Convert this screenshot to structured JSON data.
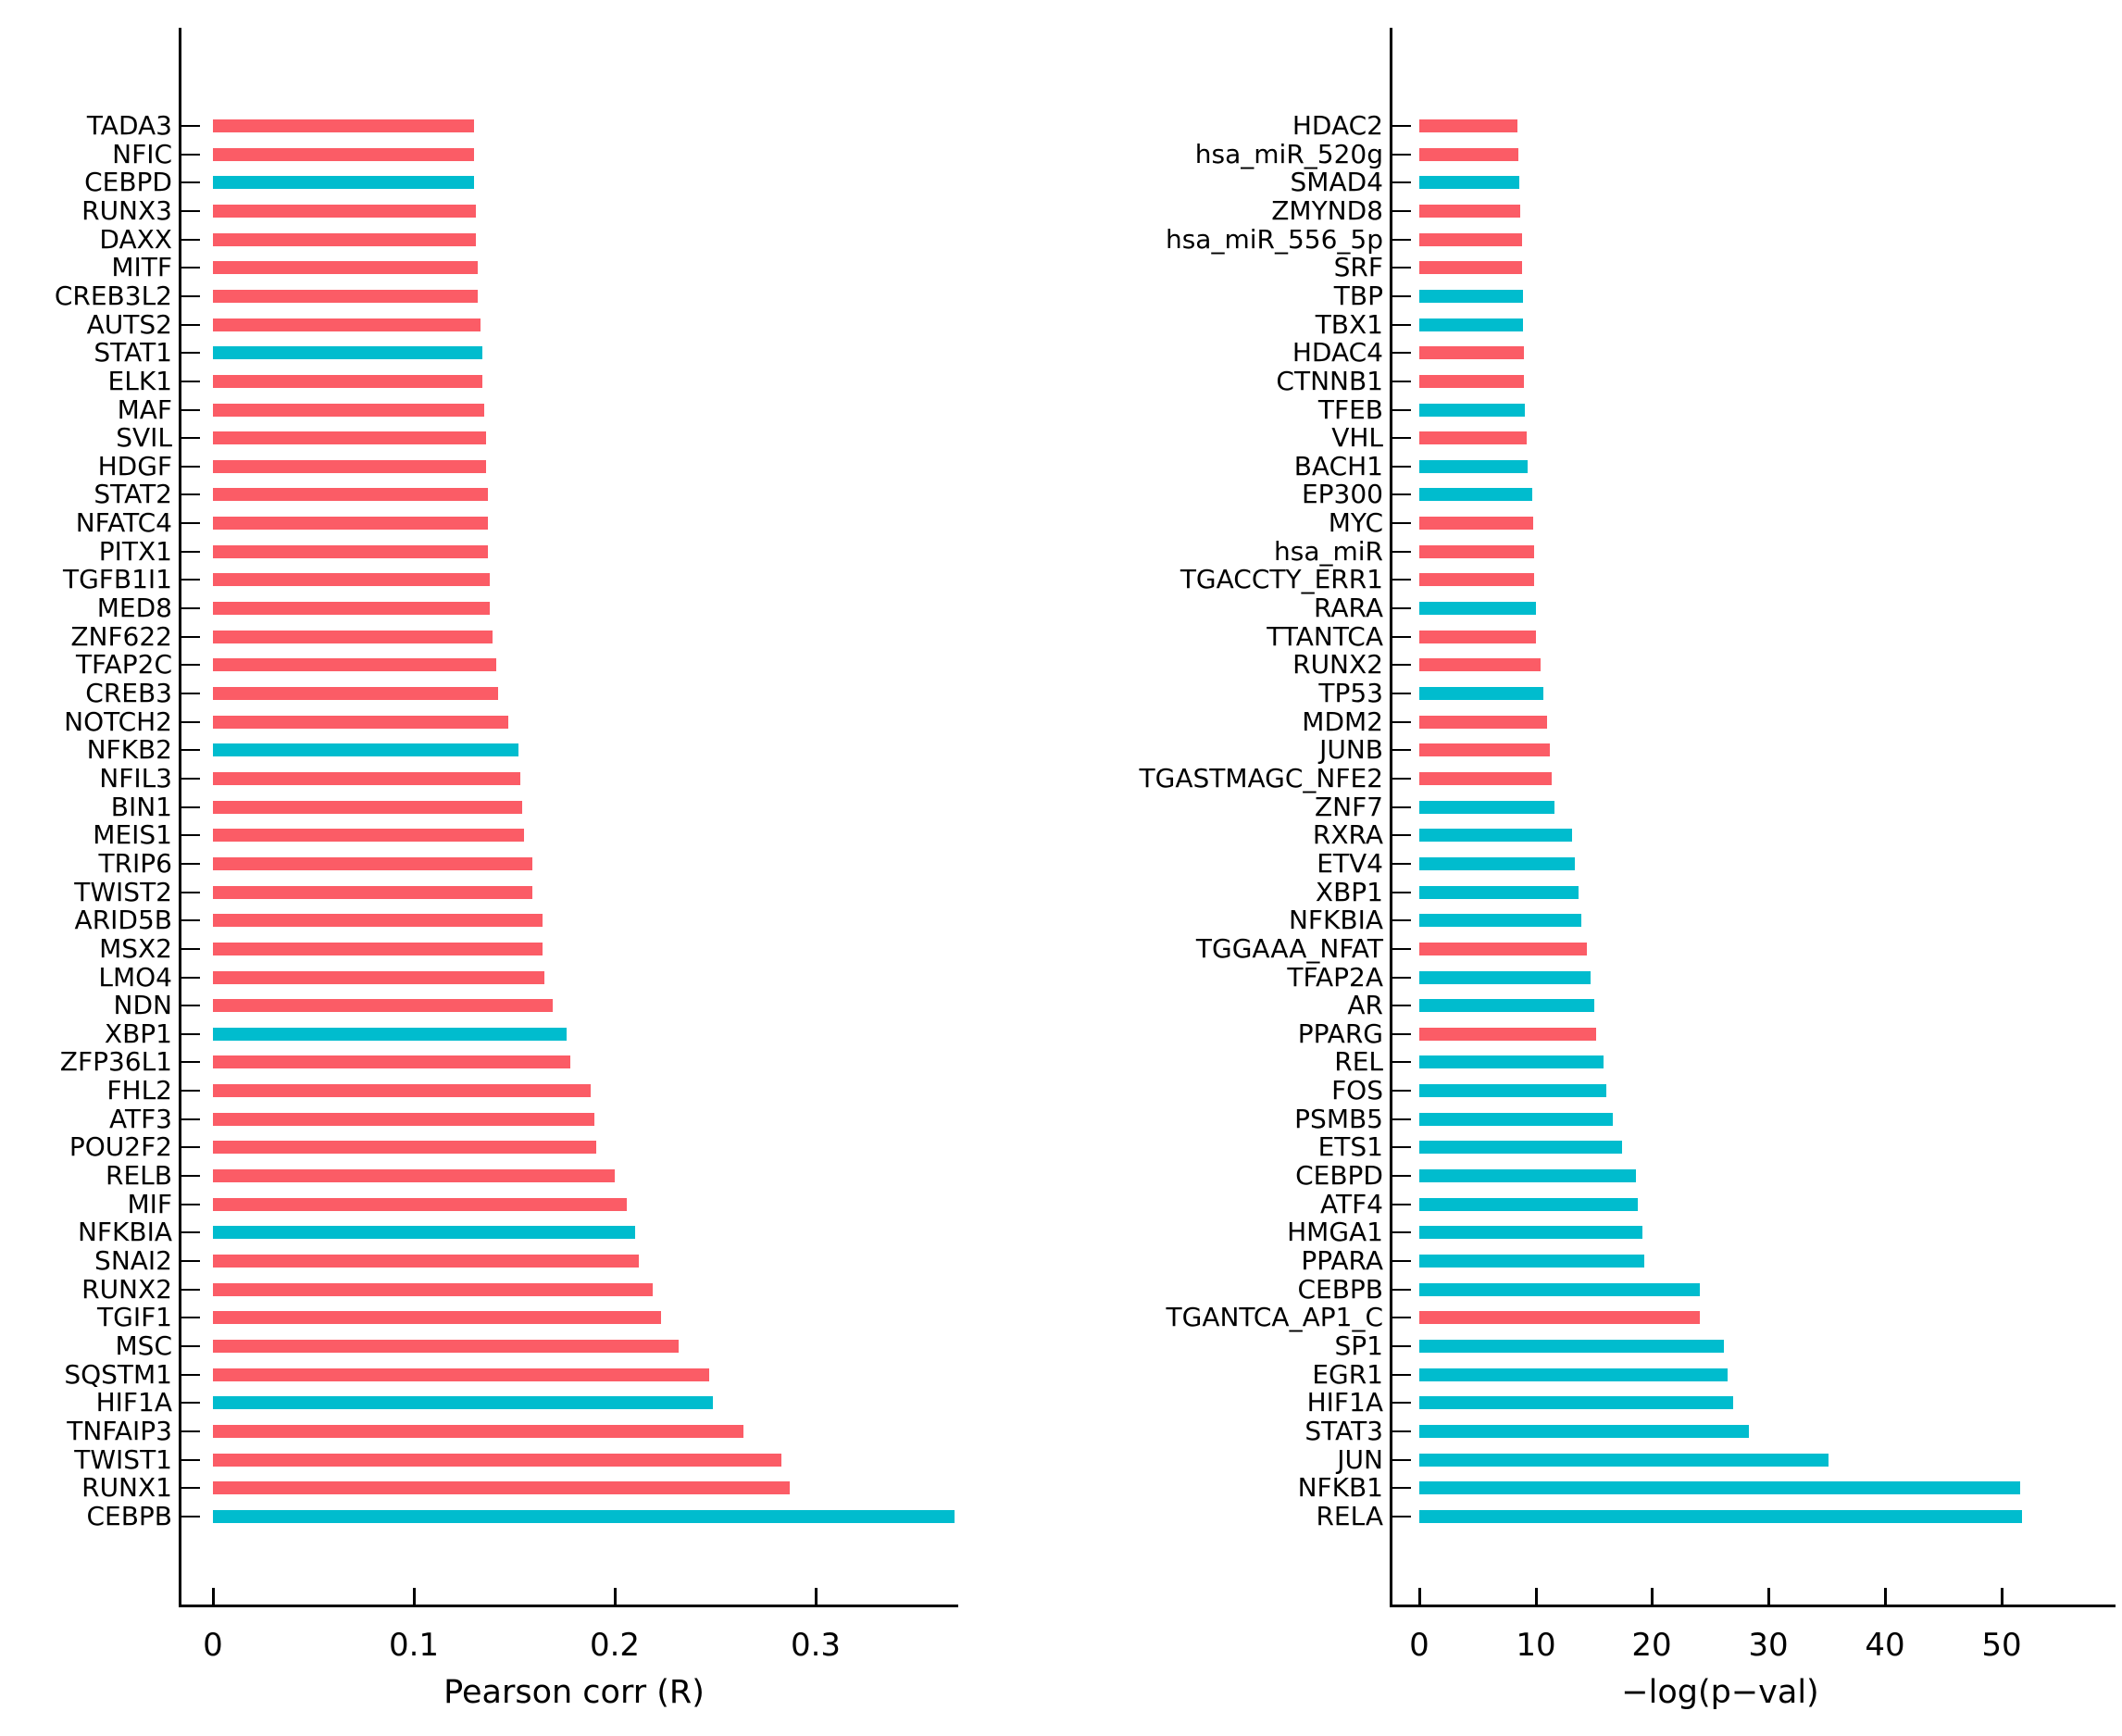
{
  "colors": {
    "bar_red": "#FB5C66",
    "bar_cyan": "#00BCCE",
    "axis": "#000000"
  },
  "chart_data": [
    {
      "type": "bar",
      "orientation": "horizontal",
      "title": "",
      "xlabel": "Pearson corr (R)",
      "ylabel": "",
      "xlim": [
        0,
        0.385
      ],
      "grid": false,
      "legend": null,
      "xtick_labels": [
        "0",
        "0.1",
        "0.2",
        "0.3"
      ],
      "xtick_values": [
        0,
        0.1,
        0.2,
        0.3
      ],
      "categories": [
        "TADA3",
        "NFIC",
        "CEBPD",
        "RUNX3",
        "DAXX",
        "MITF",
        "CREB3L2",
        "AUTS2",
        "STAT1",
        "ELK1",
        "MAF",
        "SVIL",
        "HDGF",
        "STAT2",
        "NFATC4",
        "PITX1",
        "TGFB1I1",
        "MED8",
        "ZNF622",
        "TFAP2C",
        "CREB3",
        "NOTCH2",
        "NFKB2",
        "NFIL3",
        "BIN1",
        "MEIS1",
        "TRIP6",
        "TWIST2",
        "ARID5B",
        "MSX2",
        "LMO4",
        "NDN",
        "XBP1",
        "ZFP36L1",
        "FHL2",
        "ATF3",
        "POU2F2",
        "RELB",
        "MIF",
        "NFKBIA",
        "SNAI2",
        "RUNX2",
        "TGIF1",
        "MSC",
        "SQSTM1",
        "HIF1A",
        "TNFAIP3",
        "TWIST1",
        "RUNX1",
        "CEBPB"
      ],
      "values": [
        0.13,
        0.13,
        0.13,
        0.131,
        0.131,
        0.132,
        0.132,
        0.133,
        0.134,
        0.134,
        0.135,
        0.136,
        0.136,
        0.137,
        0.137,
        0.137,
        0.138,
        0.138,
        0.139,
        0.141,
        0.142,
        0.147,
        0.152,
        0.153,
        0.154,
        0.155,
        0.159,
        0.159,
        0.164,
        0.164,
        0.165,
        0.169,
        0.176,
        0.178,
        0.188,
        0.19,
        0.191,
        0.2,
        0.206,
        0.21,
        0.212,
        0.219,
        0.223,
        0.232,
        0.247,
        0.249,
        0.264,
        0.283,
        0.287,
        0.369
      ],
      "bar_colors": [
        "red",
        "red",
        "cyan",
        "red",
        "red",
        "red",
        "red",
        "red",
        "cyan",
        "red",
        "red",
        "red",
        "red",
        "red",
        "red",
        "red",
        "red",
        "red",
        "red",
        "red",
        "red",
        "red",
        "cyan",
        "red",
        "red",
        "red",
        "red",
        "red",
        "red",
        "red",
        "red",
        "red",
        "cyan",
        "red",
        "red",
        "red",
        "red",
        "red",
        "red",
        "cyan",
        "red",
        "red",
        "red",
        "red",
        "red",
        "cyan",
        "red",
        "red",
        "red",
        "cyan"
      ]
    },
    {
      "type": "bar",
      "orientation": "horizontal",
      "title": "",
      "xlabel": "−log(p−val)",
      "ylabel": "",
      "xlim": [
        0,
        55
      ],
      "grid": false,
      "legend": null,
      "xtick_labels": [
        "0",
        "10",
        "20",
        "30",
        "40",
        "50"
      ],
      "xtick_values": [
        0,
        10,
        20,
        30,
        40,
        50
      ],
      "categories": [
        "HDAC2",
        "hsa_miR_520g",
        "SMAD4",
        "ZMYND8",
        "hsa_miR_556_5p",
        "SRF",
        "TBP",
        "TBX1",
        "HDAC4",
        "CTNNB1",
        "TFEB",
        "VHL",
        "BACH1",
        "EP300",
        "MYC",
        "hsa_miR",
        "TGACCTY_ERR1",
        "RARA",
        "TTANTCA",
        "RUNX2",
        "TP53",
        "MDM2",
        "JUNB",
        "TGASTMAGC_NFE2",
        "ZNF7",
        "RXRA",
        "ETV4",
        "XBP1",
        "NFKBIA",
        "TGGAAA_NFAT",
        "TFAP2A",
        "AR",
        "PPARG",
        "REL",
        "FOS",
        "PSMB5",
        "ETS1",
        "CEBPD",
        "ATF4",
        "HMGA1",
        "PPARA",
        "CEBPB",
        "TGANTCA_AP1_C",
        "SP1",
        "EGR1",
        "HIF1A",
        "STAT3",
        "JUN",
        "NFKB1",
        "RELA"
      ],
      "values": [
        8.4,
        8.5,
        8.6,
        8.7,
        8.8,
        8.8,
        8.9,
        8.9,
        9.0,
        9.0,
        9.1,
        9.2,
        9.3,
        9.7,
        9.8,
        9.9,
        9.9,
        10.0,
        10.0,
        10.4,
        10.7,
        11.0,
        11.2,
        11.4,
        11.6,
        13.1,
        13.4,
        13.7,
        13.9,
        14.4,
        14.7,
        15.0,
        15.2,
        15.8,
        16.1,
        16.6,
        17.4,
        18.6,
        18.8,
        19.2,
        19.3,
        24.1,
        24.1,
        26.2,
        26.5,
        27.0,
        28.3,
        35.2,
        51.6,
        51.8
      ],
      "bar_colors": [
        "red",
        "red",
        "cyan",
        "red",
        "red",
        "red",
        "cyan",
        "cyan",
        "red",
        "red",
        "cyan",
        "red",
        "cyan",
        "cyan",
        "red",
        "red",
        "red",
        "cyan",
        "red",
        "red",
        "cyan",
        "red",
        "red",
        "red",
        "cyan",
        "cyan",
        "cyan",
        "cyan",
        "cyan",
        "red",
        "cyan",
        "cyan",
        "red",
        "cyan",
        "cyan",
        "cyan",
        "cyan",
        "cyan",
        "cyan",
        "cyan",
        "cyan",
        "cyan",
        "red",
        "cyan",
        "cyan",
        "cyan",
        "cyan",
        "cyan",
        "cyan",
        "cyan"
      ]
    }
  ]
}
